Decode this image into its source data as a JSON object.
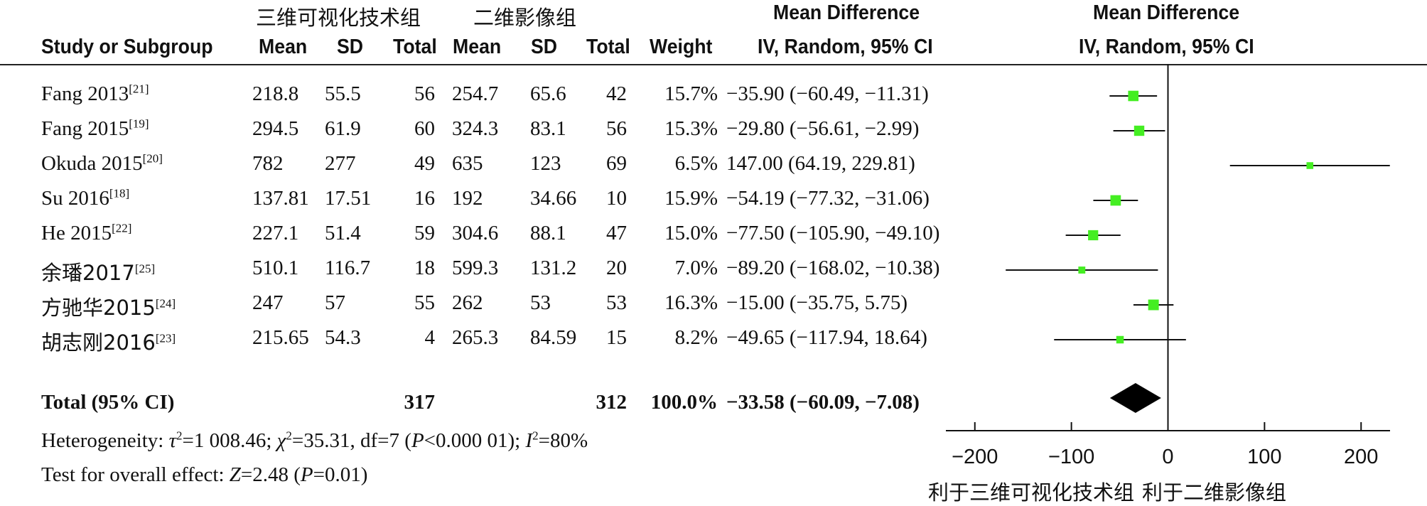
{
  "groups": {
    "experimental": "三维可视化技术组",
    "control": "二维影像组"
  },
  "headers": {
    "study": "Study or Subgroup",
    "mean": "Mean",
    "sd": "SD",
    "total": "Total",
    "weight": "Weight",
    "md_title": "Mean Difference",
    "md_sub": "IV, Random, 95% CI"
  },
  "rows": [
    {
      "study": "Fang 2013",
      "ref": "[21]",
      "m1": "218.8",
      "sd1": "55.5",
      "n1": "56",
      "m2": "254.7",
      "sd2": "65.6",
      "n2": "42",
      "weight": "15.7%",
      "ci": "−35.90 (−60.49, −11.31)"
    },
    {
      "study": "Fang 2015",
      "ref": "[19]",
      "m1": "294.5",
      "sd1": "61.9",
      "n1": "60",
      "m2": "324.3",
      "sd2": "83.1",
      "n2": "56",
      "weight": "15.3%",
      "ci": "−29.80 (−56.61, −2.99)"
    },
    {
      "study": "Okuda 2015",
      "ref": "[20]",
      "m1": "782",
      "sd1": "277",
      "n1": "49",
      "m2": "635",
      "sd2": "123",
      "n2": "69",
      "weight": "6.5%",
      "ci": "147.00 (64.19, 229.81)"
    },
    {
      "study": "Su 2016",
      "ref": "[18]",
      "m1": "137.81",
      "sd1": "17.51",
      "n1": "16",
      "m2": "192",
      "sd2": "34.66",
      "n2": "10",
      "weight": "15.9%",
      "ci": "−54.19 (−77.32, −31.06)"
    },
    {
      "study": "He 2015",
      "ref": "[22]",
      "m1": "227.1",
      "sd1": "51.4",
      "n1": "59",
      "m2": "304.6",
      "sd2": "88.1",
      "n2": "47",
      "weight": "15.0%",
      "ci": "−77.50 (−105.90, −49.10)"
    },
    {
      "study": "余璠2017",
      "ref": "[25]",
      "m1": "510.1",
      "sd1": "116.7",
      "n1": "18",
      "m2": "599.3",
      "sd2": "131.2",
      "n2": "20",
      "weight": "7.0%",
      "ci": "−89.20 (−168.02, −10.38)"
    },
    {
      "study": "方驰华2015",
      "ref": "[24]",
      "m1": "247",
      "sd1": "57",
      "n1": "55",
      "m2": "262",
      "sd2": "53",
      "n2": "53",
      "weight": "16.3%",
      "ci": "−15.00 (−35.75, 5.75)"
    },
    {
      "study": "胡志刚2016",
      "ref": "[23]",
      "m1": "215.65",
      "sd1": "54.3",
      "n1": "4",
      "m2": "265.3",
      "sd2": "84.59",
      "n2": "15",
      "weight": "8.2%",
      "ci": "−49.65 (−117.94, 18.64)"
    }
  ],
  "total": {
    "label": "Total (95% CI)",
    "n1": "317",
    "n2": "312",
    "weight": "100.0%",
    "ci": "−33.58 (−60.09, −7.08)"
  },
  "footer": {
    "heterogeneity_prefix": "Heterogeneity: ",
    "tau": "τ",
    "tau_val": "=1 008.46; ",
    "chi": "χ",
    "chi_val": "=35.31, df=7 (",
    "p": "P",
    "p_val": "<0.000 01); ",
    "i": "I",
    "i_val": "=80%",
    "overall_prefix": "Test for overall effect: ",
    "z": "Z",
    "z_val": "=2.48 (",
    "p2": "P",
    "p2_val": "=0.01)",
    "sup2": "2"
  },
  "favours": {
    "left": "利于三维可视化技术组",
    "right": "利于二维影像组"
  },
  "chart_data": {
    "type": "forest",
    "xlim": [
      -230,
      230
    ],
    "ticks": [
      -200,
      -100,
      0,
      100,
      200
    ],
    "tick_labels": [
      "−200",
      "−100",
      "0",
      "100",
      "200"
    ],
    "marker_color": "#44ee22",
    "studies": [
      {
        "name": "Fang 2013",
        "md": -35.9,
        "lo": -60.49,
        "hi": -11.31,
        "weight": 15.7
      },
      {
        "name": "Fang 2015",
        "md": -29.8,
        "lo": -56.61,
        "hi": -2.99,
        "weight": 15.3
      },
      {
        "name": "Okuda 2015",
        "md": 147.0,
        "lo": 64.19,
        "hi": 229.81,
        "weight": 6.5
      },
      {
        "name": "Su 2016",
        "md": -54.19,
        "lo": -77.32,
        "hi": -31.06,
        "weight": 15.9
      },
      {
        "name": "He 2015",
        "md": -77.5,
        "lo": -105.9,
        "hi": -49.1,
        "weight": 15.0
      },
      {
        "name": "余璠2017",
        "md": -89.2,
        "lo": -168.02,
        "hi": -10.38,
        "weight": 7.0
      },
      {
        "name": "方驰华2015",
        "md": -15.0,
        "lo": -35.75,
        "hi": 5.75,
        "weight": 16.3
      },
      {
        "name": "胡志刚2016",
        "md": -49.65,
        "lo": -117.94,
        "hi": 18.64,
        "weight": 8.2
      }
    ],
    "pooled": {
      "md": -33.58,
      "lo": -60.09,
      "hi": -7.08
    }
  }
}
